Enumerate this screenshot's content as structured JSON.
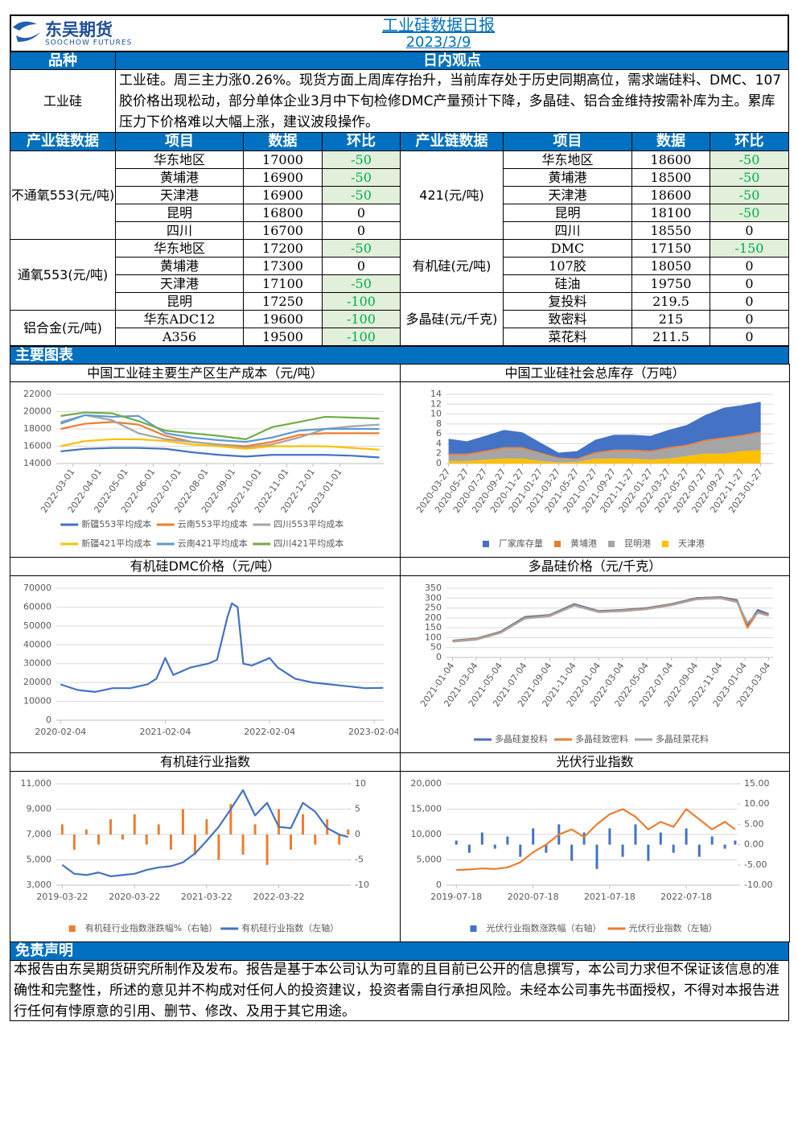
{
  "header": {
    "logo": "东吴期货",
    "logo_en": "SOOCHOW FUTURES",
    "title": "工业硅数据日报",
    "date": "2023/3/9"
  },
  "view": {
    "col1": "品种",
    "col2": "日内观点",
    "product": "工业硅",
    "text": "工业硅。周三主力涨0.26%。现货方面上周库存抬升，当前库存处于历史同期高位，需求端硅料、DMC、107胶价格出现松动，部分单体企业3月中下旬检修DMC产量预计下降，多晶硅、铝合金维持按需补库为主。累库压力下价格难以大幅上涨，建议波段操作。"
  },
  "table": {
    "headers": [
      "产业链数据",
      "项目",
      "数据",
      "环比"
    ],
    "left": [
      {
        "name": "不通氧553(元/吨)",
        "rows": [
          [
            "华东地区",
            17000,
            -50
          ],
          [
            "黄埔港",
            16900,
            -50
          ],
          [
            "天津港",
            16900,
            -50
          ],
          [
            "昆明",
            16800,
            0
          ],
          [
            "四川",
            16700,
            0
          ]
        ]
      },
      {
        "name": "通氧553(元/吨)",
        "rows": [
          [
            "华东地区",
            17200,
            -50
          ],
          [
            "黄埔港",
            17300,
            0
          ],
          [
            "天津港",
            17100,
            -50
          ],
          [
            "昆明",
            17250,
            -100
          ]
        ]
      },
      {
        "name": "铝合金(元/吨)",
        "rows": [
          [
            "华东ADC12",
            19600,
            -100
          ],
          [
            "A356",
            19500,
            -100
          ]
        ]
      }
    ],
    "right": [
      {
        "name": "421(元/吨)",
        "rows": [
          [
            "华东地区",
            18600,
            -50
          ],
          [
            "黄埔港",
            18500,
            -50
          ],
          [
            "天津港",
            18600,
            -50
          ],
          [
            "昆明",
            18100,
            -50
          ],
          [
            "四川",
            18550,
            0
          ]
        ]
      },
      {
        "name": "有机硅(元/吨)",
        "rows": [
          [
            "DMC",
            17150,
            -150
          ],
          [
            "107胶",
            18050,
            0
          ],
          [
            "硅油",
            19750,
            0
          ]
        ]
      },
      {
        "name": "多晶硅(元/千克)",
        "rows": [
          [
            "复投料",
            219.5,
            0
          ],
          [
            "致密料",
            215,
            0
          ],
          [
            "菜花料",
            211.5,
            0
          ]
        ]
      }
    ]
  },
  "section": "主要图表",
  "chart_data": [
    {
      "type": "line",
      "title": "中国工业硅主要生产区生产成本（元/吨）",
      "rotate_xticks": true,
      "grid": true,
      "legend": "bottom",
      "x": [
        "2022-02-15",
        "2022-03-15",
        "2022-04-15",
        "2022-05-15",
        "2022-06-15",
        "2022-07-15",
        "2022-08-15",
        "2022-09-15",
        "2022-10-15",
        "2022-11-15",
        "2022-12-15",
        "2023-01-15",
        "2023-02-15"
      ],
      "xlim": [
        "2022-02-10",
        "2023-02-20"
      ],
      "xticks": [
        "2022-03-01",
        "2022-04-01",
        "2022-05-01",
        "2022-06-01",
        "2022-07-01",
        "2022-08-01",
        "2022-09-01",
        "2022-10-01",
        "2022-11-01",
        "2022-12-01",
        "2023-01-01"
      ],
      "ylim": [
        14000,
        22000
      ],
      "yticks": [
        14000,
        16000,
        18000,
        20000,
        22000
      ],
      "series": [
        {
          "name": "新疆553平均成本",
          "color": "#4472c4",
          "values": [
            15400,
            15700,
            15800,
            15800,
            15700,
            15300,
            15000,
            14800,
            15000,
            15000,
            15000,
            14900,
            14700
          ]
        },
        {
          "name": "云南553平均成本",
          "color": "#ed7d31",
          "values": [
            18000,
            18600,
            18800,
            18500,
            17200,
            16500,
            16200,
            16000,
            16500,
            17300,
            17500,
            17500,
            17500
          ]
        },
        {
          "name": "四川553平均成本",
          "color": "#a5a5a5",
          "values": [
            18800,
            19600,
            19000,
            17500,
            16800,
            16500,
            16200,
            15800,
            16200,
            17000,
            18000,
            18300,
            18500
          ]
        },
        {
          "name": "新疆421平均成本",
          "color": "#ffc000",
          "values": [
            16000,
            16600,
            16800,
            16800,
            16600,
            16200,
            16000,
            15700,
            16000,
            16000,
            16000,
            15800,
            15600
          ]
        },
        {
          "name": "云南421平均成本",
          "color": "#5b9bd5",
          "values": [
            18600,
            19600,
            19400,
            19500,
            17500,
            17000,
            16700,
            16500,
            17000,
            17800,
            18000,
            18000,
            18000
          ]
        },
        {
          "name": "四川421平均成本",
          "color": "#70ad47",
          "values": [
            19500,
            19900,
            19800,
            18900,
            17800,
            17500,
            17200,
            16800,
            18200,
            18800,
            19400,
            19300,
            19200
          ]
        }
      ]
    },
    {
      "type": "stacked_area",
      "title": "中国工业硅社会总库存（万吨）",
      "rotate_xticks": true,
      "grid": true,
      "legend": "bottom",
      "x": [
        "2020-03-27",
        "2020-05-27",
        "2020-07-27",
        "2020-09-27",
        "2020-11-27",
        "2021-01-27",
        "2021-03-27",
        "2021-05-27",
        "2021-07-27",
        "2021-09-27",
        "2021-11-27",
        "2022-01-27",
        "2022-03-27",
        "2022-05-27",
        "2022-07-27",
        "2022-09-27",
        "2022-11-27",
        "2023-01-27"
      ],
      "xlim": [
        "2020-03-20",
        "2023-03-09"
      ],
      "xticks": [
        "2020-03-27",
        "2020-05-27",
        "2020-07-27",
        "2020-09-27",
        "2020-11-27",
        "2021-01-27",
        "2021-03-27",
        "2021-05-27",
        "2021-07-27",
        "2021-09-27",
        "2021-11-27",
        "2022-01-27",
        "2022-03-27",
        "2022-05-27",
        "2022-07-27",
        "2022-09-27",
        "2022-11-27",
        "2023-01-27"
      ],
      "ylim": [
        0,
        14
      ],
      "yticks": [
        0,
        2,
        4,
        6,
        8,
        10,
        12,
        14
      ],
      "series": [
        {
          "name": "厂家库存量",
          "color": "#4472c4",
          "values": [
            3,
            2.5,
            3,
            3.5,
            3,
            2,
            1,
            1.5,
            2.5,
            3,
            3,
            3,
            3.5,
            4,
            5,
            6,
            6,
            6
          ]
        },
        {
          "name": "黄埔港",
          "color": "#ed7d31",
          "values": [
            0.3,
            0.3,
            0.3,
            0.3,
            0.3,
            0.2,
            0.2,
            0.2,
            0.3,
            0.3,
            0.3,
            0.3,
            0.3,
            0.3,
            0.3,
            0.3,
            0.3,
            0.3
          ]
        },
        {
          "name": "昆明港",
          "color": "#a5a5a5",
          "values": [
            1.2,
            1.2,
            1.5,
            2,
            2,
            1.5,
            0.8,
            0.5,
            1,
            1.5,
            1.5,
            1.5,
            2,
            2,
            2.5,
            3,
            3,
            3.5
          ]
        },
        {
          "name": "天津港",
          "color": "#ffc000",
          "values": [
            0.5,
            0.5,
            0.8,
            1,
            1,
            0.5,
            0.2,
            0.3,
            1,
            1,
            1,
            0.8,
            1,
            1.5,
            2,
            2,
            2.5,
            2.7
          ]
        }
      ]
    },
    {
      "type": "line",
      "title": "有机硅DMC价格（元/吨）",
      "grid": true,
      "x": [
        "2020-02-04",
        "2020-04-04",
        "2020-06-04",
        "2020-08-04",
        "2020-10-04",
        "2020-12-04",
        "2021-01-04",
        "2021-02-04",
        "2021-03-04",
        "2021-05-04",
        "2021-07-04",
        "2021-08-04",
        "2021-09-10",
        "2021-09-25",
        "2021-10-15",
        "2021-11-04",
        "2021-12-04",
        "2022-02-04",
        "2022-03-04",
        "2022-05-04",
        "2022-07-04",
        "2022-09-04",
        "2022-11-04",
        "2023-01-04",
        "2023-03-08"
      ],
      "xlim": [
        "2020-01-20",
        "2023-03-10"
      ],
      "xticks": [
        "2020-02-04",
        "2021-02-04",
        "2022-02-04",
        "2023-02-04"
      ],
      "ylim": [
        0,
        70000
      ],
      "yticks": [
        0,
        10000,
        20000,
        30000,
        40000,
        50000,
        60000,
        70000
      ],
      "color": "#4472c4",
      "values": [
        19000,
        16000,
        15000,
        17000,
        17000,
        19000,
        22000,
        33000,
        24000,
        28000,
        30000,
        32000,
        55000,
        62000,
        60000,
        30000,
        29000,
        33000,
        28000,
        22000,
        20000,
        19000,
        18000,
        17000,
        17150
      ]
    },
    {
      "type": "line",
      "title": "多晶硅价格（元/千克）",
      "rotate_xticks": true,
      "grid": true,
      "legend": "bottom",
      "x": [
        "2021-01-04",
        "2021-03-04",
        "2021-05-04",
        "2021-07-04",
        "2021-09-04",
        "2021-11-04",
        "2022-01-04",
        "2022-03-04",
        "2022-05-04",
        "2022-07-04",
        "2022-09-04",
        "2022-11-04",
        "2022-12-15",
        "2023-01-10",
        "2023-02-05",
        "2023-03-04"
      ],
      "xlim": [
        "2020-12-20",
        "2023-03-15"
      ],
      "xticks": [
        "2021-01-04",
        "2021-03-04",
        "2021-05-04",
        "2021-07-04",
        "2021-09-04",
        "2021-11-04",
        "2022-01-04",
        "2022-03-04",
        "2022-05-04",
        "2022-07-04",
        "2022-09-04",
        "2022-11-04",
        "2023-01-04",
        "2023-03-04"
      ],
      "ylim": [
        0,
        350
      ],
      "yticks": [
        0,
        50,
        100,
        150,
        200,
        250,
        300,
        350
      ],
      "series": [
        {
          "name": "多晶硅复投料",
          "color": "#4472c4",
          "values": [
            85,
            95,
            130,
            205,
            215,
            270,
            235,
            240,
            250,
            270,
            300,
            305,
            290,
            160,
            240,
            219.5
          ]
        },
        {
          "name": "多晶硅致密料",
          "color": "#ed7d31",
          "values": [
            83,
            93,
            127,
            200,
            212,
            265,
            232,
            237,
            247,
            267,
            297,
            302,
            285,
            150,
            230,
            215
          ]
        },
        {
          "name": "多晶硅菜花料",
          "color": "#a5a5a5",
          "values": [
            80,
            90,
            124,
            197,
            209,
            262,
            229,
            234,
            244,
            264,
            294,
            299,
            280,
            175,
            225,
            211.5
          ]
        }
      ]
    },
    {
      "type": "combo",
      "title": "有机硅行业指数",
      "grid": true,
      "legend": "bottom",
      "x": [
        "2019-03-22",
        "2019-05-22",
        "2019-07-22",
        "2019-09-22",
        "2019-11-22",
        "2020-01-22",
        "2020-03-22",
        "2020-05-22",
        "2020-07-22",
        "2020-09-22",
        "2020-11-22",
        "2021-01-22",
        "2021-03-22",
        "2021-05-22",
        "2021-07-22",
        "2021-09-22",
        "2021-11-22",
        "2022-01-22",
        "2022-03-22",
        "2022-05-22",
        "2022-07-22",
        "2022-09-22",
        "2022-11-22",
        "2023-01-22",
        "2023-03-08"
      ],
      "xlim": [
        "2019-02-20",
        "2023-03-09"
      ],
      "xticks": [
        "2019-03-22",
        "2020-03-22",
        "2021-03-22",
        "2022-03-22"
      ],
      "ylim": [
        3000,
        11000
      ],
      "yticks": [
        {
          "value": 3000,
          "label": "3,000"
        },
        {
          "value": 5000,
          "label": "5,000"
        },
        {
          "value": 7000,
          "label": "7,000"
        },
        {
          "value": 9000,
          "label": "9,000"
        },
        {
          "value": 11000,
          "label": "11,000"
        }
      ],
      "y2lim": [
        -10,
        10
      ],
      "y2ticks": [
        -10,
        -5,
        0,
        5,
        10
      ],
      "series": [
        {
          "name": "有机硅行业指数涨跌幅%（右轴）",
          "color": "#ed7d31",
          "kind": "bar",
          "axis": "y2",
          "values": [
            2,
            -3,
            1,
            -2,
            3,
            -1,
            4,
            -2,
            2,
            -3,
            5,
            -4,
            3,
            -5,
            6,
            -4,
            2,
            -6,
            5,
            -3,
            4,
            -2,
            3,
            -2,
            1
          ]
        },
        {
          "name": "有机硅行业指数（左轴）",
          "color": "#4472c4",
          "kind": "line",
          "axis": "y",
          "values": [
            4600,
            3900,
            3800,
            4000,
            3700,
            3800,
            3900,
            4200,
            4400,
            4500,
            4800,
            5500,
            6500,
            7600,
            9000,
            10500,
            8500,
            9500,
            7600,
            7500,
            9500,
            8800,
            7500,
            7000,
            6800
          ]
        }
      ]
    },
    {
      "type": "combo",
      "title": "光伏行业指数",
      "grid": true,
      "legend": "bottom",
      "x": [
        "2019-07-18",
        "2019-09-18",
        "2019-11-18",
        "2020-01-18",
        "2020-03-18",
        "2020-05-18",
        "2020-07-18",
        "2020-09-18",
        "2020-11-18",
        "2021-01-18",
        "2021-03-18",
        "2021-05-18",
        "2021-07-18",
        "2021-09-18",
        "2021-11-18",
        "2022-01-18",
        "2022-03-18",
        "2022-05-18",
        "2022-07-18",
        "2022-09-18",
        "2022-11-18",
        "2023-01-18",
        "2023-03-08"
      ],
      "xlim": [
        "2019-06-01",
        "2023-03-20"
      ],
      "xticks": [
        "2019-07-18",
        "2020-07-18",
        "2021-07-18",
        "2022-07-18"
      ],
      "ylim": [
        0,
        20000
      ],
      "yticks": [
        0,
        {
          "value": 5000,
          "label": "5,000"
        },
        {
          "value": 10000,
          "label": "10,000"
        },
        {
          "value": 15000,
          "label": "15,000"
        },
        {
          "value": 20000,
          "label": "20,000"
        }
      ],
      "y2lim": [
        -10,
        15
      ],
      "y2ticks": [
        {
          "value": -10,
          "label": "-10.00"
        },
        {
          "value": -5,
          "label": "-5.00"
        },
        {
          "value": 0,
          "label": "0.00"
        },
        {
          "value": 5,
          "label": "5.00"
        },
        {
          "value": 10,
          "label": "10.00"
        },
        {
          "value": 15,
          "label": "15.00"
        }
      ],
      "series": [
        {
          "name": "光伏行业指数涨跌幅（右轴）",
          "color": "#4472c4",
          "kind": "bar",
          "axis": "y2",
          "values": [
            1,
            -2,
            3,
            -1,
            2,
            -3,
            4,
            -2,
            5,
            -4,
            3,
            -6,
            4,
            -3,
            5,
            -4,
            3,
            -2,
            4,
            -3,
            2,
            -1,
            1
          ]
        },
        {
          "name": "光伏行业指数（左轴）",
          "color": "#ed7d31",
          "kind": "line",
          "axis": "y",
          "values": [
            3000,
            3100,
            3300,
            3200,
            3500,
            4500,
            6500,
            8000,
            10000,
            11000,
            9500,
            12000,
            14000,
            15000,
            13500,
            11000,
            12500,
            11500,
            15000,
            13000,
            11000,
            12500,
            11000
          ]
        }
      ]
    }
  ],
  "disclaimer": {
    "title": "免责声明",
    "text": "本报告由东吴期货研究所制作及发布。报告是基于本公司认为可靠的且目前已公开的信息撰写，本公司力求但不保证该信息的准确性和完整性，所述的意见并不构成对任何人的投资建议，投资者需自行承担风险。未经本公司事先书面授权，不得对本报告进行任何有悖原意的引用、删节、修改、及用于其它用途。"
  }
}
